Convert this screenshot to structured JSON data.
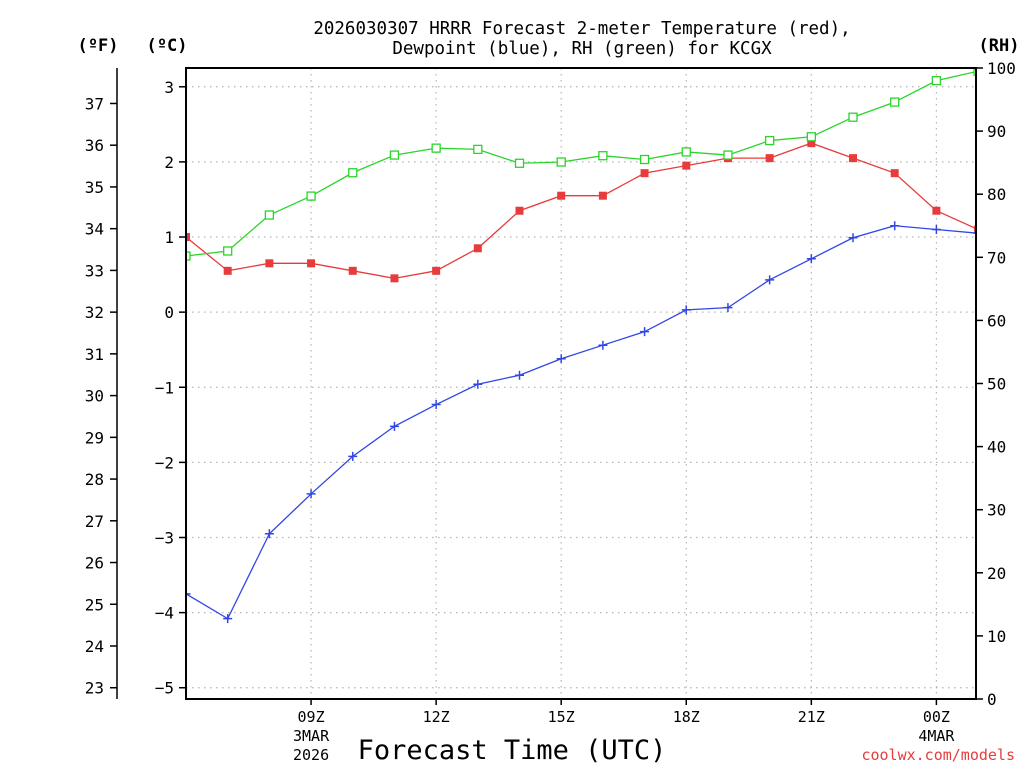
{
  "chart_data": {
    "type": "line",
    "title_line1": "2026030307 HRRR Forecast 2-meter Temperature (red),",
    "title_line2": "Dewpoint (blue), RH (green) for KCGX",
    "xlabel": "Forecast Time (UTC)",
    "unit_left_f": "(ºF)",
    "unit_left_c": "(ºC)",
    "unit_right": "(RH)",
    "credit": "coolwx.com/models",
    "x_hours": [
      6,
      7,
      8,
      9,
      10,
      11,
      12,
      13,
      14,
      15,
      16,
      17,
      18,
      19,
      20,
      21,
      22,
      23,
      24,
      25
    ],
    "xlim": [
      6,
      24.95
    ],
    "x_ticks": [
      {
        "hour": 9,
        "label": "09Z",
        "sub1": "3MAR",
        "sub2": "2026"
      },
      {
        "hour": 12,
        "label": "12Z",
        "sub1": "",
        "sub2": ""
      },
      {
        "hour": 15,
        "label": "15Z",
        "sub1": "",
        "sub2": ""
      },
      {
        "hour": 18,
        "label": "18Z",
        "sub1": "",
        "sub2": ""
      },
      {
        "hour": 21,
        "label": "21Z",
        "sub1": "",
        "sub2": ""
      },
      {
        "hour": 24,
        "label": "00Z",
        "sub1": "4MAR",
        "sub2": ""
      }
    ],
    "ylim_c": [
      -5.15,
      3.25
    ],
    "yticks_c": [
      3,
      2,
      1,
      0,
      -1,
      -2,
      -3,
      -4,
      -5
    ],
    "yticklabels_c": [
      "3",
      "2",
      "1",
      "0",
      "−1",
      "−2",
      "−3",
      "−4",
      "−5"
    ],
    "yticks_f": [
      37,
      36,
      35,
      34,
      33,
      32,
      31,
      30,
      29,
      28,
      27,
      26,
      25,
      24,
      23
    ],
    "ylim_rh": [
      0,
      100
    ],
    "yticks_rh": [
      100,
      90,
      80,
      70,
      60,
      50,
      40,
      30,
      20,
      10,
      0
    ],
    "series": [
      {
        "name": "Temperature",
        "color": "#e83c3c",
        "marker": "filled-square",
        "values": [
          1.0,
          0.55,
          0.65,
          0.65,
          0.55,
          0.45,
          0.55,
          0.85,
          1.35,
          1.55,
          1.55,
          1.85,
          1.95,
          2.05,
          2.05,
          2.25,
          2.05,
          1.85,
          1.35,
          1.1
        ]
      },
      {
        "name": "Dewpoint",
        "color": "#3246e6",
        "marker": "plus",
        "values": [
          -3.75,
          -4.08,
          -2.95,
          -2.42,
          -1.92,
          -1.52,
          -1.23,
          -0.96,
          -0.84,
          -0.62,
          -0.44,
          -0.26,
          0.03,
          0.06,
          0.43,
          0.71,
          0.99,
          1.15,
          1.1,
          1.05
        ]
      },
      {
        "name": "RH",
        "color": "#2ad42a",
        "marker": "open-square",
        "values": [
          70.2,
          71.0,
          76.7,
          79.7,
          83.4,
          86.2,
          87.3,
          87.1,
          84.9,
          85.1,
          86.1,
          85.5,
          86.7,
          86.2,
          88.5,
          89.1,
          92.2,
          94.6,
          98.0,
          99.5
        ]
      }
    ]
  }
}
